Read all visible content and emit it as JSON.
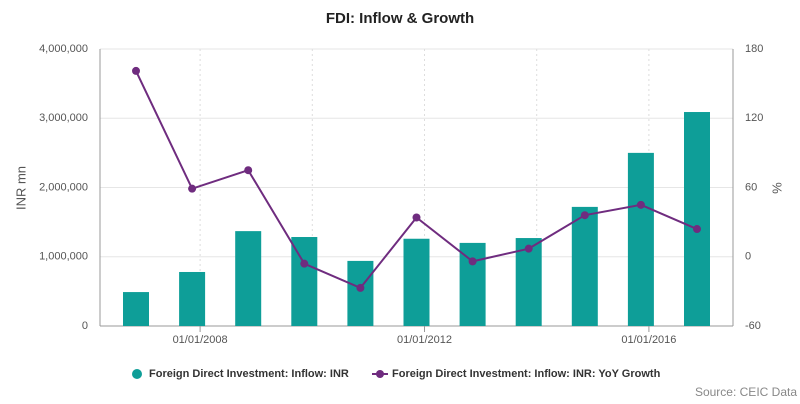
{
  "chart_data": {
    "type": "bar_line",
    "title": "FDI: Inflow & Growth",
    "ylabel": "INR mn",
    "y2label": "%",
    "source": "Source: CEIC Data",
    "categories": [
      null,
      "01/01/2008",
      null,
      null,
      null,
      "01/01/2012",
      null,
      null,
      null,
      "01/01/2016",
      null
    ],
    "series": [
      {
        "name": "Foreign Direct Investment: Inflow: INR",
        "type": "bar",
        "color": "#0e9e98",
        "values": [
          490000,
          780000,
          1370000,
          1285000,
          940000,
          1260000,
          1200000,
          1270000,
          1720000,
          2500000,
          3090000
        ]
      },
      {
        "name": "Foreign Direct Investment: Inflow: INR: YoY Growth",
        "type": "line",
        "axis": "y2",
        "color": "#6f2c7f",
        "values": [
          161,
          59,
          75,
          -6,
          -27,
          34,
          -4,
          7,
          36,
          45,
          24
        ]
      }
    ],
    "ylim": [
      0,
      4000000
    ],
    "yticks": [
      0,
      {
        "value": 1000000,
        "label": "1,000,000"
      },
      {
        "value": 2000000,
        "label": "2,000,000"
      },
      {
        "value": 3000000,
        "label": "3,000,000"
      },
      {
        "value": 4000000,
        "label": "4,000,000"
      }
    ],
    "y2lim": [
      -60,
      180
    ],
    "y2ticks": [
      -60,
      0,
      60,
      120,
      180
    ],
    "grid": true
  }
}
